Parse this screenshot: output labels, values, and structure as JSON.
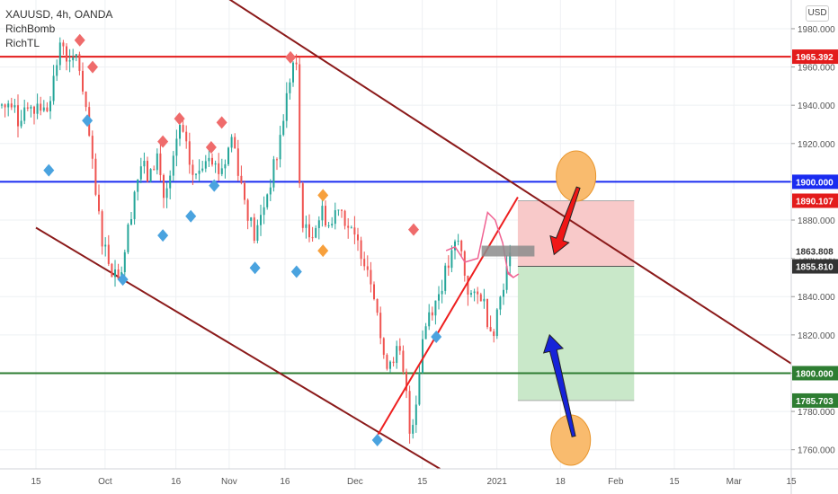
{
  "header": {
    "symbol": "XAUUSD, 4h, OANDA",
    "indicator1": "RichBomb",
    "indicator2": "RichTL",
    "currency": "USD"
  },
  "colors": {
    "up": "#26a69a",
    "down": "#ef5350",
    "resistance": "#e31b1b",
    "support_blue": "#1a2cf0",
    "support_green": "#2e7d32",
    "channel": "#8b1a1a",
    "trend": "#ee1f1f",
    "stop_zone": "#f8c9c9",
    "target_zone": "#c9e8c9",
    "circle": "#f9bb6e",
    "signal_down": "#ef6b6b",
    "signal_up": "#4aa3df",
    "signal_orange": "#f7a03c"
  },
  "chart_data": {
    "type": "candlestick",
    "symbol": "XAUUSD",
    "timeframe": "4h",
    "ylim": [
      1750,
      1995
    ],
    "y_ticks": [
      1760,
      1780,
      1800,
      1820,
      1840,
      1860,
      1880,
      1900,
      1920,
      1940,
      1960,
      1980
    ],
    "y_tick_labels": [
      "1760.000",
      "1780.000",
      "1800.000",
      "1820.000",
      "1840.000",
      "1860.000",
      "1880.000",
      "1900.000",
      "1920.000",
      "1940.000",
      "1960.000",
      "1980.000"
    ],
    "x_ticks": [
      {
        "label": "15",
        "pos": 0.0
      },
      {
        "label": "Oct",
        "pos": 0.0915
      },
      {
        "label": "16",
        "pos": 0.1853
      },
      {
        "label": "Nov",
        "pos": 0.2558
      },
      {
        "label": "16",
        "pos": 0.3297
      },
      {
        "label": "Dec",
        "pos": 0.4225
      },
      {
        "label": "15",
        "pos": 0.5115
      },
      {
        "label": "2021",
        "pos": 0.6103
      },
      {
        "label": "18",
        "pos": 0.6944
      },
      {
        "label": "Feb",
        "pos": 0.7676
      },
      {
        "label": "15",
        "pos": 0.8452
      },
      {
        "label": "Mar",
        "pos": 0.9241
      },
      {
        "label": "15",
        "pos": 1.0
      }
    ],
    "horizontal_levels": [
      {
        "name": "resistance",
        "value": 1965.392,
        "label": "1965.392"
      },
      {
        "name": "blue-level",
        "value": 1900.0,
        "label": "1900.000"
      },
      {
        "name": "green-level",
        "value": 1800.0,
        "label": "1800.000"
      }
    ],
    "price_tags": [
      {
        "name": "stop-loss",
        "value": 1890.107,
        "label": "1890.107"
      },
      {
        "name": "last-price",
        "value": 1863.808,
        "label": "1863.808"
      },
      {
        "name": "entry",
        "value": 1855.81,
        "label": "1855.810"
      },
      {
        "name": "take-profit",
        "value": 1785.703,
        "label": "1785.703"
      }
    ],
    "path": [
      [
        0.0,
        1945
      ],
      [
        0.012,
        1935
      ],
      [
        0.024,
        1955
      ],
      [
        0.035,
        1975
      ],
      [
        0.046,
        1958
      ],
      [
        0.055,
        1968
      ],
      [
        0.062,
        1945
      ],
      [
        0.07,
        1925
      ],
      [
        0.078,
        1895
      ],
      [
        0.088,
        1870
      ],
      [
        0.1,
        1855
      ],
      [
        0.112,
        1852
      ],
      [
        0.12,
        1870
      ],
      [
        0.13,
        1895
      ],
      [
        0.14,
        1910
      ],
      [
        0.15,
        1900
      ],
      [
        0.16,
        1915
      ],
      [
        0.17,
        1890
      ],
      [
        0.18,
        1905
      ],
      [
        0.19,
        1930
      ],
      [
        0.2,
        1915
      ],
      [
        0.21,
        1900
      ],
      [
        0.22,
        1910
      ],
      [
        0.23,
        1918
      ],
      [
        0.24,
        1905
      ],
      [
        0.25,
        1910
      ],
      [
        0.26,
        1925
      ],
      [
        0.27,
        1902
      ],
      [
        0.28,
        1885
      ],
      [
        0.29,
        1870
      ],
      [
        0.3,
        1885
      ],
      [
        0.31,
        1900
      ],
      [
        0.32,
        1915
      ],
      [
        0.33,
        1940
      ],
      [
        0.34,
        1962
      ],
      [
        0.345,
        1958
      ],
      [
        0.35,
        1885
      ],
      [
        0.36,
        1870
      ],
      [
        0.37,
        1878
      ],
      [
        0.38,
        1885
      ],
      [
        0.39,
        1875
      ],
      [
        0.4,
        1890
      ],
      [
        0.41,
        1880
      ],
      [
        0.42,
        1870
      ],
      [
        0.43,
        1865
      ],
      [
        0.44,
        1855
      ],
      [
        0.45,
        1840
      ],
      [
        0.46,
        1805
      ],
      [
        0.47,
        1808
      ],
      [
        0.48,
        1812
      ],
      [
        0.49,
        1790
      ],
      [
        0.495,
        1768
      ],
      [
        0.505,
        1790
      ],
      [
        0.51,
        1815
      ],
      [
        0.52,
        1832
      ],
      [
        0.53,
        1838
      ],
      [
        0.54,
        1850
      ],
      [
        0.55,
        1860
      ],
      [
        0.558,
        1870
      ],
      [
        0.565,
        1860
      ],
      [
        0.57,
        1845
      ],
      [
        0.58,
        1838
      ],
      [
        0.59,
        1842
      ],
      [
        0.6,
        1825
      ],
      [
        0.605,
        1822
      ],
      [
        0.612,
        1835
      ],
      [
        0.62,
        1850
      ],
      [
        0.63,
        1862
      ]
    ],
    "signals": [
      {
        "pos": 0.058,
        "value": 1974,
        "dir": "down"
      },
      {
        "pos": 0.075,
        "value": 1960,
        "dir": "down"
      },
      {
        "pos": 0.168,
        "value": 1921,
        "dir": "down"
      },
      {
        "pos": 0.19,
        "value": 1933,
        "dir": "down"
      },
      {
        "pos": 0.232,
        "value": 1918,
        "dir": "down"
      },
      {
        "pos": 0.246,
        "value": 1931,
        "dir": "down"
      },
      {
        "pos": 0.337,
        "value": 1965,
        "dir": "down"
      },
      {
        "pos": 0.5,
        "value": 1875,
        "dir": "down"
      },
      {
        "pos": 0.017,
        "value": 1906,
        "dir": "up"
      },
      {
        "pos": 0.068,
        "value": 1932,
        "dir": "up"
      },
      {
        "pos": 0.115,
        "value": 1849,
        "dir": "up"
      },
      {
        "pos": 0.168,
        "value": 1872,
        "dir": "up"
      },
      {
        "pos": 0.205,
        "value": 1882,
        "dir": "up"
      },
      {
        "pos": 0.236,
        "value": 1898,
        "dir": "up"
      },
      {
        "pos": 0.29,
        "value": 1855,
        "dir": "up"
      },
      {
        "pos": 0.345,
        "value": 1853,
        "dir": "up"
      },
      {
        "pos": 0.452,
        "value": 1765,
        "dir": "up"
      },
      {
        "pos": 0.53,
        "value": 1819,
        "dir": "up"
      },
      {
        "pos": 0.38,
        "value": 1893,
        "dir": "orange"
      },
      {
        "pos": 0.38,
        "value": 1864,
        "dir": "orange"
      }
    ],
    "channel_upper": [
      [
        0.238,
        2000
      ],
      [
        1.0,
        1805
      ]
    ],
    "channel_lower": [
      [
        0.0,
        1876
      ],
      [
        0.535,
        1750
      ]
    ],
    "uptrend": [
      [
        0.453,
        1768
      ],
      [
        0.638,
        1892
      ]
    ],
    "trade_box": {
      "x_start": 0.638,
      "x_end": 0.792,
      "stop": 1890.107,
      "entry": 1855.81,
      "target": 1785.703
    },
    "projection_path": [
      [
        0.543,
        1864
      ],
      [
        0.555,
        1866
      ],
      [
        0.568,
        1858
      ],
      [
        0.585,
        1860
      ],
      [
        0.598,
        1884
      ],
      [
        0.608,
        1880
      ],
      [
        0.618,
        1868
      ],
      [
        0.625,
        1852
      ],
      [
        0.632,
        1850
      ]
    ],
    "gray_box": {
      "x_start": 0.59,
      "x_end": 0.66,
      "value": 1863.808
    },
    "circles": [
      {
        "pos": 0.715,
        "value": 1903
      },
      {
        "pos": 0.708,
        "value": 1765
      }
    ],
    "arrows": [
      {
        "color": "red",
        "from": [
          0.718,
          1897
        ],
        "to": [
          0.686,
          1862
        ]
      },
      {
        "color": "blue",
        "from": [
          0.712,
          1767
        ],
        "to": [
          0.68,
          1820
        ]
      }
    ]
  }
}
